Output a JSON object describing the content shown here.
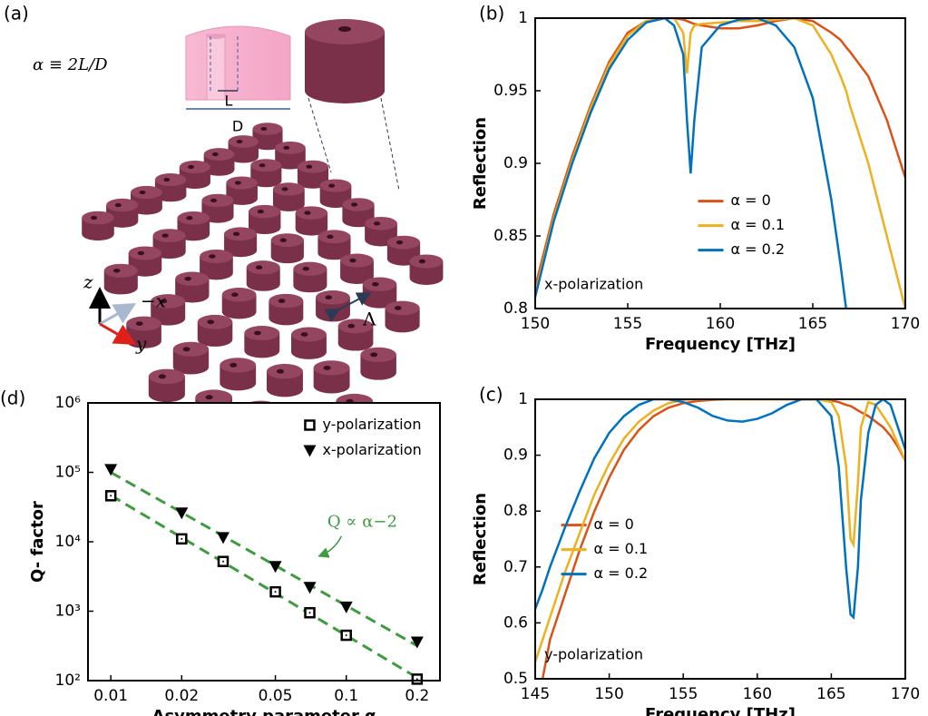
{
  "illustration": {
    "panel_label": "(a)",
    "alpha_definition": "α ≡ 2L/D",
    "hole_label": "L",
    "diameter_label": "D",
    "axis_z": "z",
    "axis_x": "−x",
    "axis_y": "y",
    "period_label": "Λ"
  },
  "chart_data": [
    {
      "type": "line",
      "panel_label": "(b)",
      "xlabel": "Frequency [THz]",
      "ylabel": "Reflection",
      "annotation": "x-polarization",
      "legend": "center-right",
      "x": [
        150,
        151,
        152,
        153,
        154,
        155,
        156,
        157,
        157.5,
        158,
        158.2,
        158.4,
        158.6,
        159,
        160,
        161,
        162,
        163,
        164,
        165,
        166,
        166.5,
        166.8,
        167,
        168,
        169,
        170
      ],
      "xlim": [
        150,
        170
      ],
      "xticks": [
        150,
        155,
        160,
        165,
        170
      ],
      "ylim": [
        0.8,
        1
      ],
      "yticks": [
        0.8,
        0.85,
        0.9,
        0.95,
        1
      ],
      "series": [
        {
          "name": "α = 0",
          "color": "#d95319",
          "values": [
            0.815,
            0.865,
            0.905,
            0.94,
            0.97,
            0.99,
            0.998,
            1.0,
            1.0,
            0.999,
            0.998,
            0.997,
            0.996,
            0.995,
            0.993,
            0.993,
            0.995,
            0.998,
            1.0,
            0.998,
            0.99,
            0.985,
            0.98,
            0.977,
            0.96,
            0.93,
            0.89
          ]
        },
        {
          "name": "α = 0.1",
          "color": "#edb120",
          "values": [
            0.81,
            0.862,
            0.902,
            0.938,
            0.968,
            0.988,
            0.998,
            1.0,
            1.0,
            0.99,
            0.962,
            0.99,
            0.995,
            0.996,
            0.997,
            0.998,
            0.998,
            0.999,
            1.0,
            0.995,
            0.975,
            0.96,
            0.95,
            0.94,
            0.9,
            0.85,
            0.8
          ]
        },
        {
          "name": "α = 0.2",
          "color": "#0072bd",
          "values": [
            0.808,
            0.86,
            0.9,
            0.935,
            0.965,
            0.985,
            0.997,
            1.0,
            0.995,
            0.975,
            0.93,
            0.893,
            0.93,
            0.98,
            0.995,
            0.999,
            1.0,
            0.995,
            0.98,
            0.945,
            0.875,
            0.83,
            0.8,
            null,
            null,
            null,
            null
          ]
        }
      ]
    },
    {
      "type": "line",
      "panel_label": "(c)",
      "xlabel": "Frequency [THz]",
      "ylabel": "Reflection",
      "annotation": "y-polarization",
      "legend": "center-left",
      "x": [
        145,
        145.5,
        146,
        147,
        148,
        149,
        150,
        151,
        152,
        153,
        154,
        155,
        156,
        157,
        158,
        159,
        160,
        161,
        162,
        163,
        164,
        165,
        165.5,
        166,
        166.3,
        166.5,
        166.8,
        167,
        167.5,
        168,
        168.5,
        169,
        169.5,
        170
      ],
      "xlim": [
        145,
        170
      ],
      "xticks": [
        145,
        150,
        155,
        160,
        165,
        170
      ],
      "ylim": [
        0.5,
        1
      ],
      "yticks": [
        0.5,
        0.6,
        0.7,
        0.8,
        0.9,
        1
      ],
      "series": [
        {
          "name": "α = 0",
          "color": "#d95319",
          "values": [
            null,
            0.5,
            0.57,
            0.65,
            0.73,
            0.8,
            0.86,
            0.91,
            0.945,
            0.97,
            0.985,
            0.993,
            0.997,
            0.999,
            1.0,
            1.0,
            1.0,
            1.0,
            1.0,
            1.0,
            1.0,
            0.998,
            0.995,
            0.99,
            0.988,
            0.985,
            0.98,
            0.977,
            0.97,
            0.96,
            0.95,
            0.935,
            0.915,
            0.89
          ]
        },
        {
          "name": "α = 0.1",
          "color": "#edb120",
          "values": [
            0.53,
            0.57,
            0.61,
            0.69,
            0.76,
            0.83,
            0.885,
            0.93,
            0.96,
            0.98,
            0.993,
            0.999,
            1.0,
            1.0,
            1.0,
            1.0,
            1.0,
            1.0,
            1.0,
            1.0,
            1.0,
            0.995,
            0.97,
            0.88,
            0.75,
            0.74,
            0.85,
            0.95,
            0.995,
            0.99,
            0.97,
            0.95,
            0.92,
            0.89
          ]
        },
        {
          "name": "α = 0.2",
          "color": "#0072bd",
          "values": [
            0.625,
            0.66,
            0.7,
            0.77,
            0.835,
            0.895,
            0.94,
            0.97,
            0.99,
            1.0,
            1.0,
            0.995,
            0.985,
            0.97,
            0.962,
            0.96,
            0.965,
            0.975,
            0.99,
            1.0,
            1.0,
            0.97,
            0.88,
            0.7,
            0.615,
            0.61,
            0.7,
            0.82,
            0.94,
            0.99,
            1.0,
            0.99,
            0.95,
            0.91
          ]
        }
      ]
    },
    {
      "type": "scatter",
      "panel_label": "(d)",
      "xlabel": "Asymmetry parameter α",
      "ylabel": "Q- factor",
      "annotation": "Q ∝ α−2",
      "legend": "upper-right",
      "xscale": "log",
      "yscale": "log",
      "fit_color": "#3f9a41",
      "xlim": [
        0.008,
        0.25
      ],
      "xticks": [
        0.01,
        0.02,
        0.05,
        0.1,
        0.2
      ],
      "ylim": [
        100,
        1000000
      ],
      "yticks": [
        {
          "value": 100,
          "label": "10²"
        },
        {
          "value": 1000,
          "label": "10³"
        },
        {
          "value": 10000,
          "label": "10⁴"
        },
        {
          "value": 100000,
          "label": "10⁵"
        },
        {
          "value": 1000000,
          "label": "10⁶"
        }
      ],
      "series": [
        {
          "name": "y-polarization",
          "marker": "square",
          "color": "#000000",
          "x": [
            0.01,
            0.02,
            0.03,
            0.05,
            0.07,
            0.1,
            0.2
          ],
          "values": [
            46000,
            11000,
            5200,
            1900,
            950,
            450,
            105
          ]
        },
        {
          "name": "x-polarization",
          "marker": "triangle",
          "color": "#000000",
          "x": [
            0.01,
            0.02,
            0.03,
            0.05,
            0.07,
            0.1,
            0.2
          ],
          "values": [
            110000,
            26000,
            11500,
            4400,
            2200,
            1150,
            360
          ]
        }
      ]
    }
  ]
}
